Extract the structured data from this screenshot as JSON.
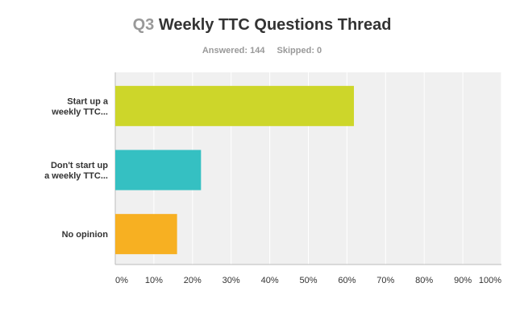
{
  "header": {
    "question_number": "Q3",
    "question_title": "Weekly TTC Questions Thread",
    "answered": "Answered: 144",
    "skipped": "Skipped: 0"
  },
  "chart_data": {
    "type": "bar",
    "orientation": "horizontal",
    "categories": [
      [
        "Start up a",
        "weekly TTC..."
      ],
      [
        "Don't start up",
        "a weekly TTC..."
      ],
      [
        "No opinion"
      ]
    ],
    "values": [
      61.8,
      22.2,
      16.0
    ],
    "colors": [
      "#cdd62a",
      "#35c0c2",
      "#f7b022"
    ],
    "xlim": [
      0,
      100
    ],
    "xticks": [
      "0%",
      "10%",
      "20%",
      "30%",
      "40%",
      "50%",
      "60%",
      "70%",
      "80%",
      "90%",
      "100%"
    ],
    "grid": true,
    "plot_background": "#f0f0f0",
    "grid_color": "#ffffff"
  }
}
